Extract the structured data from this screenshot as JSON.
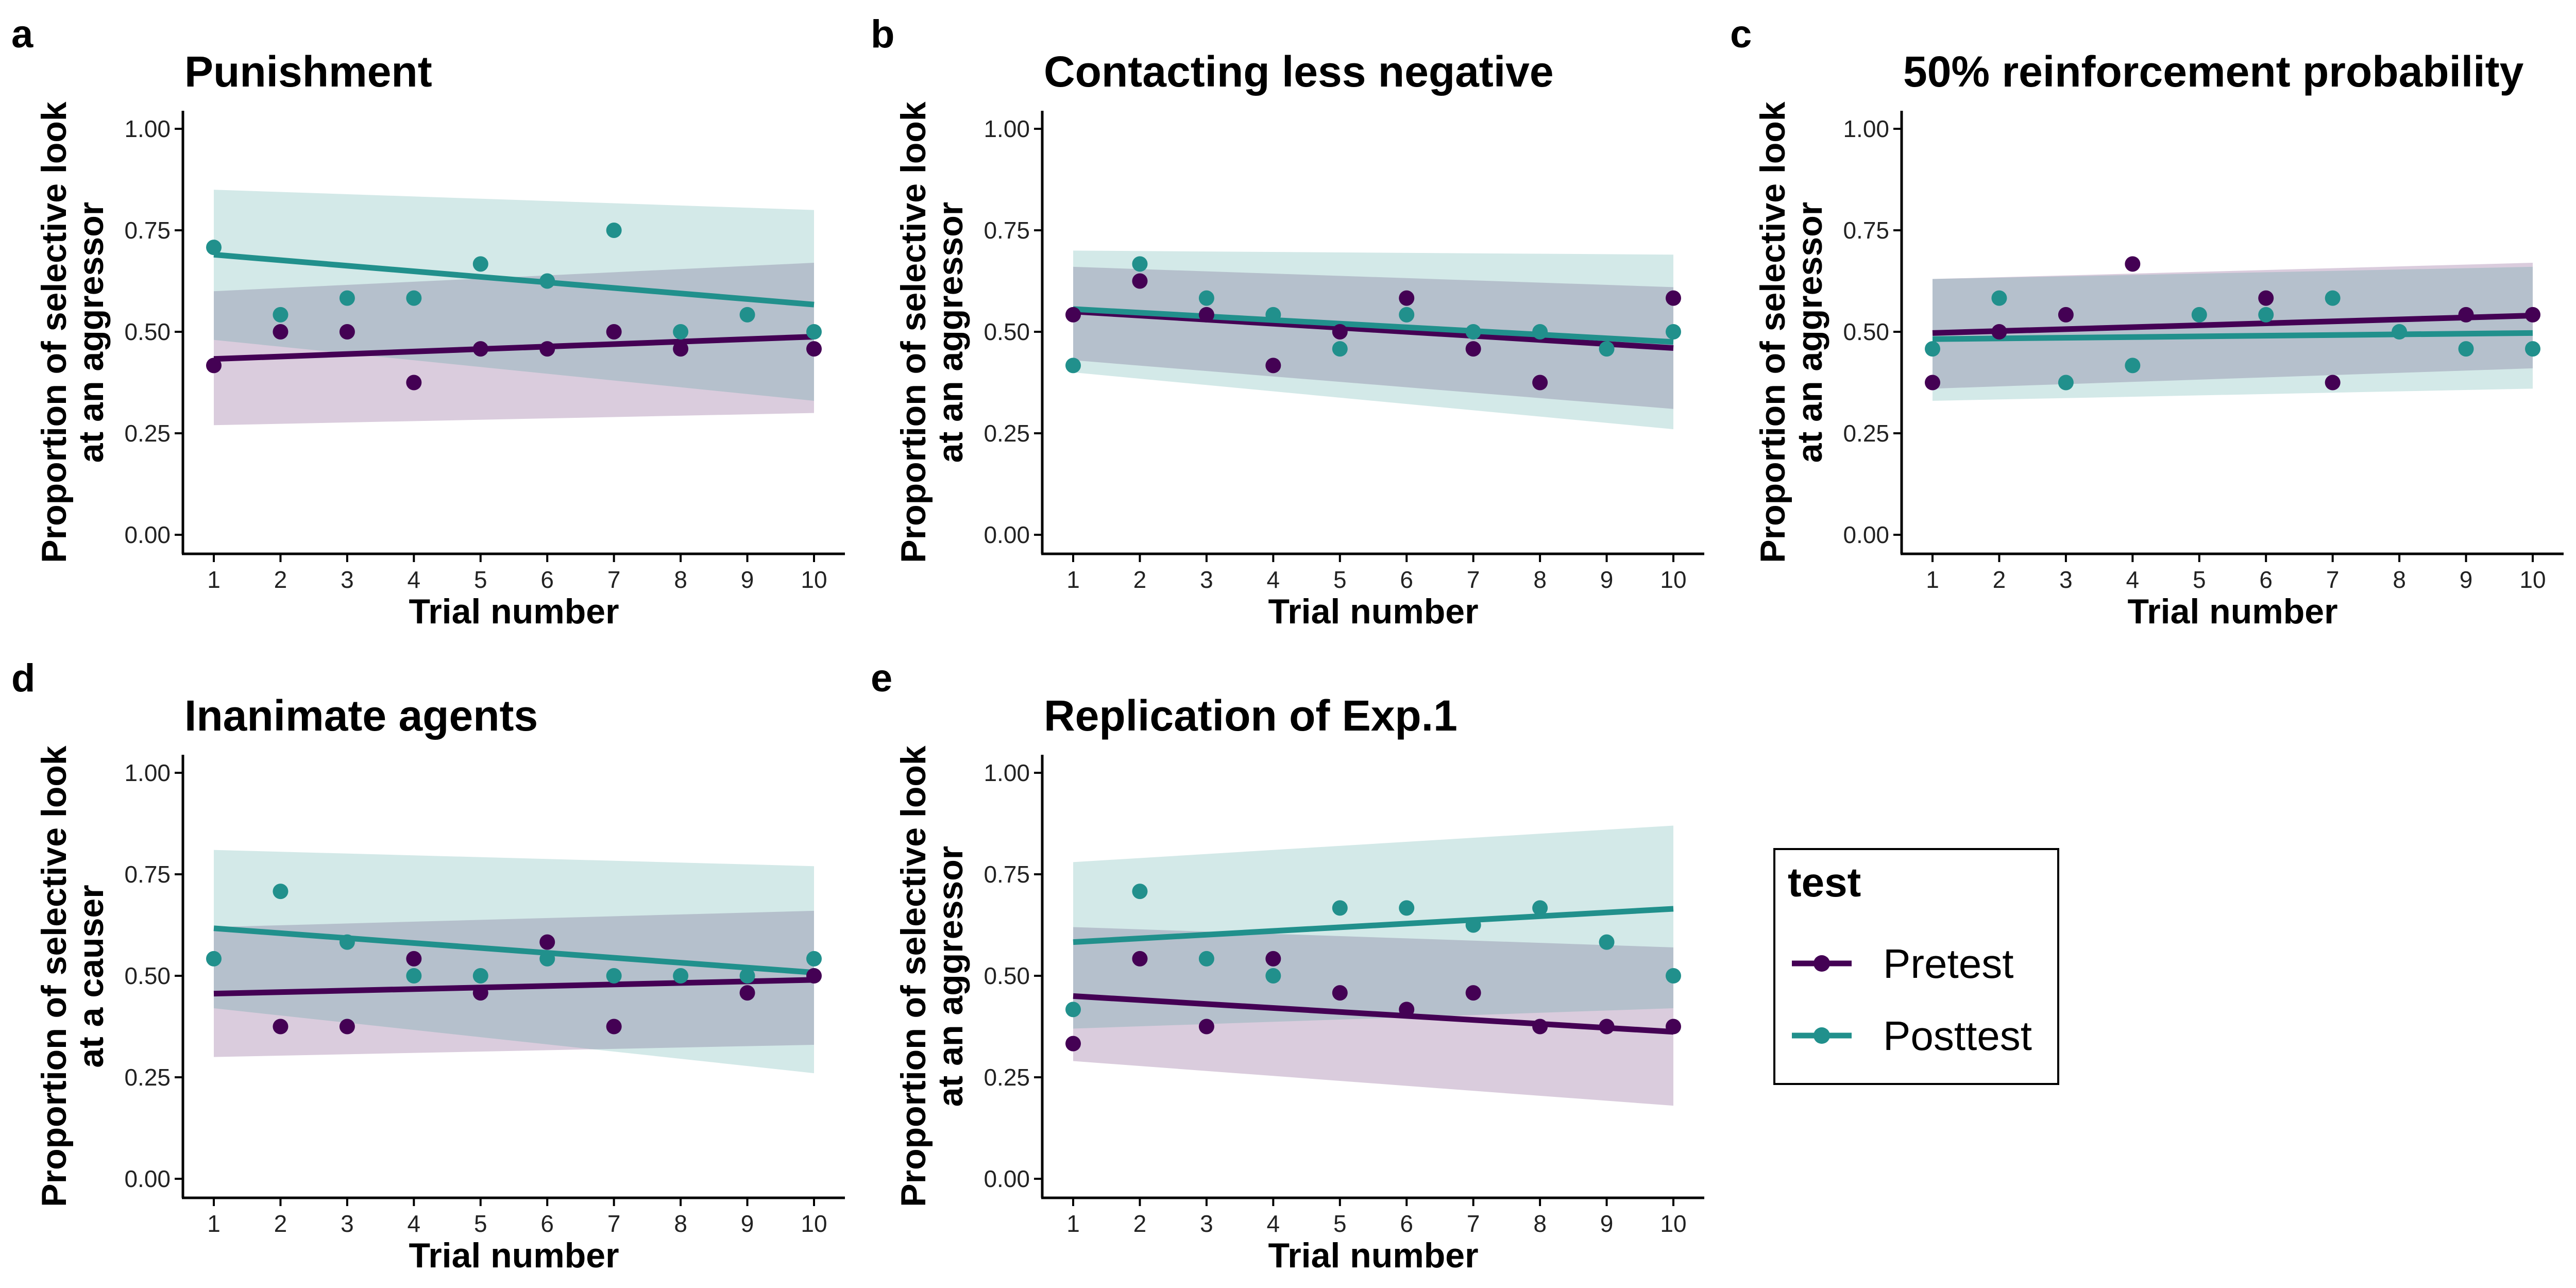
{
  "colors": {
    "pretest": "#440154",
    "posttest": "#21908C",
    "axis": "#000000"
  },
  "legend": {
    "title": "test",
    "items": [
      {
        "key": "pretest",
        "label": "Pretest"
      },
      {
        "key": "posttest",
        "label": "Posttest"
      }
    ]
  },
  "chart_data": [
    {
      "panel": "a",
      "type": "scatter",
      "title": "Punishment",
      "xlabel": "Trial number",
      "ylabel_lines": [
        "Proportion of selective look",
        "at an aggressor"
      ],
      "x": [
        1,
        2,
        3,
        4,
        5,
        6,
        7,
        8,
        9,
        10
      ],
      "xticks": [
        "1",
        "2",
        "3",
        "4",
        "5",
        "6",
        "7",
        "8",
        "9",
        "10"
      ],
      "yticks": [
        "0.00",
        "0.25",
        "0.50",
        "0.75",
        "1.00"
      ],
      "ylim": [
        0,
        1
      ],
      "xlim": [
        1,
        10
      ],
      "series": [
        {
          "key": "pretest",
          "name": "Pretest",
          "values": [
            0.417,
            0.5,
            0.5,
            0.375,
            0.458,
            0.458,
            0.5,
            0.458,
            null,
            0.458
          ],
          "fit": [
            0.433,
            0.488
          ],
          "ci_low": [
            0.27,
            0.3
          ],
          "ci_high": [
            0.6,
            0.67
          ]
        },
        {
          "key": "posttest",
          "name": "Posttest",
          "values": [
            0.708,
            0.542,
            0.583,
            0.583,
            0.667,
            0.625,
            0.75,
            0.5,
            0.542,
            0.5
          ],
          "fit": [
            0.69,
            0.567
          ],
          "ci_low": [
            0.48,
            0.33
          ],
          "ci_high": [
            0.85,
            0.8
          ]
        }
      ]
    },
    {
      "panel": "b",
      "type": "scatter",
      "title": "Contacting less negative",
      "xlabel": "Trial number",
      "ylabel_lines": [
        "Proportion of selective look",
        "at an aggressor"
      ],
      "x": [
        1,
        2,
        3,
        4,
        5,
        6,
        7,
        8,
        9,
        10
      ],
      "xticks": [
        "1",
        "2",
        "3",
        "4",
        "5",
        "6",
        "7",
        "8",
        "9",
        "10"
      ],
      "yticks": [
        "0.00",
        "0.25",
        "0.50",
        "0.75",
        "1.00"
      ],
      "ylim": [
        0,
        1
      ],
      "xlim": [
        1,
        10
      ],
      "series": [
        {
          "key": "pretest",
          "name": "Pretest",
          "values": [
            0.542,
            0.625,
            0.542,
            0.417,
            0.5,
            0.583,
            0.458,
            0.375,
            null,
            0.583
          ],
          "fit": [
            0.55,
            0.46
          ],
          "ci_low": [
            0.43,
            0.31
          ],
          "ci_high": [
            0.66,
            0.61
          ]
        },
        {
          "key": "posttest",
          "name": "Posttest",
          "values": [
            0.417,
            0.667,
            0.583,
            0.542,
            0.458,
            0.542,
            0.5,
            0.5,
            0.458,
            0.5
          ],
          "fit": [
            0.556,
            0.475
          ],
          "ci_low": [
            0.4,
            0.26
          ],
          "ci_high": [
            0.7,
            0.69
          ]
        }
      ]
    },
    {
      "panel": "c",
      "type": "scatter",
      "title": "50% reinforcement probability",
      "xlabel": "Trial number",
      "ylabel_lines": [
        "Proportion of selective look",
        "at an aggressor"
      ],
      "x": [
        1,
        2,
        3,
        4,
        5,
        6,
        7,
        8,
        9,
        10
      ],
      "xticks": [
        "1",
        "2",
        "3",
        "4",
        "5",
        "6",
        "7",
        "8",
        "9",
        "10"
      ],
      "yticks": [
        "0.00",
        "0.25",
        "0.50",
        "0.75",
        "1.00"
      ],
      "ylim": [
        0,
        1
      ],
      "xlim": [
        1,
        10
      ],
      "series": [
        {
          "key": "pretest",
          "name": "Pretest",
          "values": [
            0.375,
            0.5,
            0.542,
            0.667,
            null,
            0.583,
            0.375,
            null,
            0.542,
            0.542
          ],
          "fit": [
            0.497,
            0.54
          ],
          "ci_low": [
            0.36,
            0.41
          ],
          "ci_high": [
            0.63,
            0.67
          ]
        },
        {
          "key": "posttest",
          "name": "Posttest",
          "values": [
            0.458,
            0.583,
            0.375,
            0.417,
            0.542,
            0.542,
            0.583,
            0.5,
            0.458,
            0.458
          ],
          "fit": [
            0.482,
            0.497
          ],
          "ci_low": [
            0.33,
            0.36
          ],
          "ci_high": [
            0.63,
            0.66
          ]
        }
      ]
    },
    {
      "panel": "d",
      "type": "scatter",
      "title": "Inanimate agents",
      "xlabel": "Trial number",
      "ylabel_lines": [
        "Proportion of selective look",
        "at a causer"
      ],
      "x": [
        1,
        2,
        3,
        4,
        5,
        6,
        7,
        8,
        9,
        10
      ],
      "xticks": [
        "1",
        "2",
        "3",
        "4",
        "5",
        "6",
        "7",
        "8",
        "9",
        "10"
      ],
      "yticks": [
        "0.00",
        "0.25",
        "0.50",
        "0.75",
        "1.00"
      ],
      "ylim": [
        0,
        1
      ],
      "xlim": [
        1,
        10
      ],
      "series": [
        {
          "key": "pretest",
          "name": "Pretest",
          "values": [
            null,
            0.375,
            0.375,
            0.542,
            0.458,
            0.583,
            0.375,
            null,
            0.458,
            0.5
          ],
          "fit": [
            0.456,
            0.49
          ],
          "ci_low": [
            0.3,
            0.33
          ],
          "ci_high": [
            0.62,
            0.66
          ]
        },
        {
          "key": "posttest",
          "name": "Posttest",
          "values": [
            0.542,
            0.708,
            0.583,
            0.5,
            0.5,
            0.542,
            0.5,
            0.5,
            0.5,
            0.542
          ],
          "fit": [
            0.617,
            0.508
          ],
          "ci_low": [
            0.42,
            0.26
          ],
          "ci_high": [
            0.81,
            0.77
          ]
        }
      ]
    },
    {
      "panel": "e",
      "type": "scatter",
      "title": "Replication of Exp.1",
      "xlabel": "Trial number",
      "ylabel_lines": [
        "Proportion of selective look",
        "at an aggressor"
      ],
      "x": [
        1,
        2,
        3,
        4,
        5,
        6,
        7,
        8,
        9,
        10
      ],
      "xticks": [
        "1",
        "2",
        "3",
        "4",
        "5",
        "6",
        "7",
        "8",
        "9",
        "10"
      ],
      "yticks": [
        "0.00",
        "0.25",
        "0.50",
        "0.75",
        "1.00"
      ],
      "ylim": [
        0,
        1
      ],
      "xlim": [
        1,
        10
      ],
      "series": [
        {
          "key": "pretest",
          "name": "Pretest",
          "values": [
            0.333,
            0.542,
            0.375,
            0.542,
            0.458,
            0.417,
            0.458,
            0.375,
            0.375,
            0.375
          ],
          "fit": [
            0.45,
            0.362
          ],
          "ci_low": [
            0.29,
            0.18
          ],
          "ci_high": [
            0.62,
            0.57
          ]
        },
        {
          "key": "posttest",
          "name": "Posttest",
          "values": [
            0.417,
            0.708,
            0.542,
            0.5,
            0.667,
            0.667,
            0.625,
            0.667,
            0.583,
            0.5
          ],
          "fit": [
            0.583,
            0.665
          ],
          "ci_low": [
            0.37,
            0.42
          ],
          "ci_high": [
            0.78,
            0.87
          ]
        }
      ]
    }
  ]
}
